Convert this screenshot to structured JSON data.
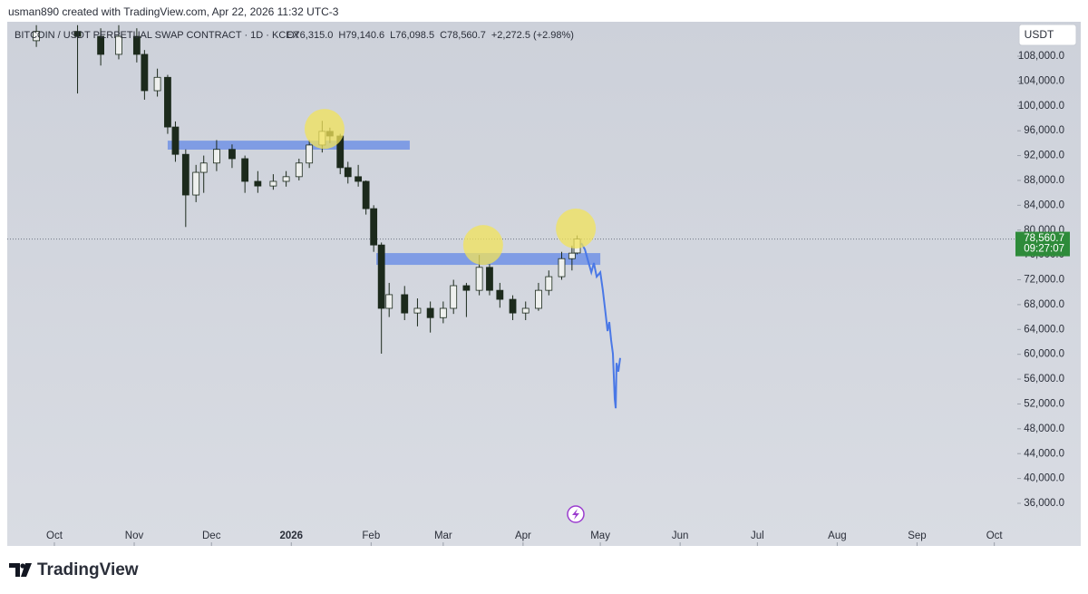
{
  "header": {
    "credit": "usman890 created with TradingView.com, Apr 22, 2026 11:32 UTC-3"
  },
  "chart_data": {
    "type": "candlestick",
    "symbol": "BITCOIN / USDT PERPETUAL SWAP CONTRACT · 1D · KCEX",
    "ohlc_legend": [
      "O76,315.0",
      "H79,140.6",
      "L76,098.5",
      "C78,560.7",
      "+2,272.5 (+2.98%)"
    ],
    "currency": "USDT",
    "xlim": [
      -18.3,
      369.7
    ],
    "xticks": [
      {
        "value": 0,
        "label": "Oct"
      },
      {
        "value": 31,
        "label": "Nov"
      },
      {
        "value": 61,
        "label": "Dec"
      },
      {
        "value": 92,
        "label": "2026"
      },
      {
        "value": 123,
        "label": "Feb"
      },
      {
        "value": 151,
        "label": "Mar"
      },
      {
        "value": 182,
        "label": "Apr"
      },
      {
        "value": 212,
        "label": "May"
      },
      {
        "value": 243,
        "label": "Jun"
      },
      {
        "value": 273,
        "label": "Jul"
      },
      {
        "value": 304,
        "label": "Aug"
      },
      {
        "value": 335,
        "label": "Sep"
      },
      {
        "value": 365,
        "label": "Oct"
      }
    ],
    "ylim": [
      29136,
      113550
    ],
    "yticks": [
      {
        "value": 36000,
        "label": "36,000.0"
      },
      {
        "value": 40000,
        "label": "40,000.0"
      },
      {
        "value": 44000,
        "label": "44,000.0"
      },
      {
        "value": 48000,
        "label": "48,000.0"
      },
      {
        "value": 52000,
        "label": "52,000.0"
      },
      {
        "value": 56000,
        "label": "56,000.0"
      },
      {
        "value": 60000,
        "label": "60,000.0"
      },
      {
        "value": 64000,
        "label": "64,000.0"
      },
      {
        "value": 68000,
        "label": "68,000.0"
      },
      {
        "value": 72000,
        "label": "72,000.0"
      },
      {
        "value": 76000,
        "label": "76,000.0"
      },
      {
        "value": 80000,
        "label": "80,000.0"
      },
      {
        "value": 84000,
        "label": "84,000.0"
      },
      {
        "value": 88000,
        "label": "88,000.0"
      },
      {
        "value": 92000,
        "label": "92,000.0"
      },
      {
        "value": 96000,
        "label": "96,000.0"
      },
      {
        "value": 100000,
        "label": "100,000.0"
      },
      {
        "value": 104000,
        "label": "104,000.0"
      },
      {
        "value": 108000,
        "label": "108,000.0"
      }
    ],
    "candles": {
      "x": [
        -7,
        9,
        18,
        25,
        32,
        35,
        40,
        44,
        47,
        51,
        55,
        58,
        63,
        69,
        74,
        79,
        85,
        90,
        95,
        99,
        104,
        107,
        111,
        114,
        118,
        121,
        124,
        127,
        130,
        136,
        141,
        146,
        151,
        155,
        160,
        165,
        169,
        173,
        178,
        183,
        188,
        192,
        197,
        201,
        203
      ],
      "open": [
        110500,
        112000,
        111200,
        108300,
        111200,
        108300,
        102450,
        104600,
        96600,
        92200,
        85650,
        89300,
        90800,
        93000,
        91500,
        87850,
        87100,
        87850,
        88600,
        90800,
        93700,
        95900,
        95150,
        90050,
        88600,
        87850,
        83450,
        77600,
        67400,
        69600,
        66650,
        67400,
        65900,
        67400,
        71050,
        70300,
        74000,
        70300,
        68850,
        66650,
        67400,
        70300,
        72500,
        75400,
        76315
      ],
      "high": [
        113000,
        113000,
        112500,
        113000,
        112500,
        109000,
        106000,
        105000,
        97500,
        93000,
        90500,
        92000,
        94500,
        93800,
        92000,
        89500,
        89000,
        89500,
        91500,
        94500,
        97600,
        96500,
        95500,
        91000,
        90500,
        88000,
        84000,
        78000,
        71500,
        71000,
        69000,
        68500,
        68500,
        72000,
        71500,
        76000,
        74500,
        71500,
        69500,
        68500,
        71500,
        73500,
        76500,
        77500,
        79140.6
      ],
      "low": [
        109500,
        102000,
        106500,
        107500,
        107000,
        101000,
        101500,
        95500,
        91000,
        80500,
        84500,
        86000,
        89500,
        90000,
        86000,
        86000,
        86500,
        87000,
        88000,
        90000,
        92500,
        94000,
        89000,
        87500,
        87000,
        82500,
        76500,
        60100,
        66000,
        65500,
        64500,
        63500,
        65000,
        66500,
        66000,
        69500,
        69500,
        67500,
        65500,
        65500,
        67000,
        69500,
        72000,
        73500,
        76098.5
      ],
      "close": [
        112000,
        111200,
        108300,
        111200,
        108300,
        102450,
        104600,
        96600,
        92200,
        85650,
        89300,
        90800,
        93000,
        91500,
        87850,
        87100,
        87850,
        88600,
        90800,
        93700,
        95900,
        95150,
        90050,
        88600,
        87850,
        83450,
        77600,
        67400,
        69600,
        66650,
        67400,
        65900,
        67400,
        71050,
        70300,
        74000,
        70300,
        68850,
        66650,
        67400,
        70300,
        72500,
        75400,
        76288.2,
        78560.7
      ]
    },
    "up_color": "#eef0ee",
    "down_color": "#1c2a1c",
    "projection": {
      "x": [
        204.6,
        206,
        207,
        208.5,
        209.5,
        210.6,
        212,
        213,
        214,
        214.8,
        215.5,
        216.2,
        216.9,
        217.6,
        218,
        218.3,
        219,
        219.7
      ],
      "values": [
        77900,
        76900,
        75400,
        73200,
        74700,
        72500,
        73200,
        70300,
        66700,
        63750,
        65200,
        62300,
        60100,
        52800,
        51300,
        58600,
        57200,
        59400
      ],
      "color": "#4a78e6"
    },
    "zones": [
      {
        "x": [
          44,
          138
        ],
        "y": [
          92960,
          94400
        ]
      },
      {
        "x": [
          125,
          212
        ],
        "y": [
          74400,
          76300
        ]
      }
    ],
    "zone_color": "#6a8de6",
    "highlights": {
      "x": [
        104.9,
        166.5,
        202.5
      ],
      "y": [
        96300,
        77600,
        80250
      ],
      "color": "#f2e35a"
    },
    "last_price": {
      "value": 78560.7,
      "label": "78,560.7",
      "countdown": "09:27:07",
      "color": "#2e8b3a"
    }
  },
  "footer": {
    "brand": "TradingView"
  }
}
